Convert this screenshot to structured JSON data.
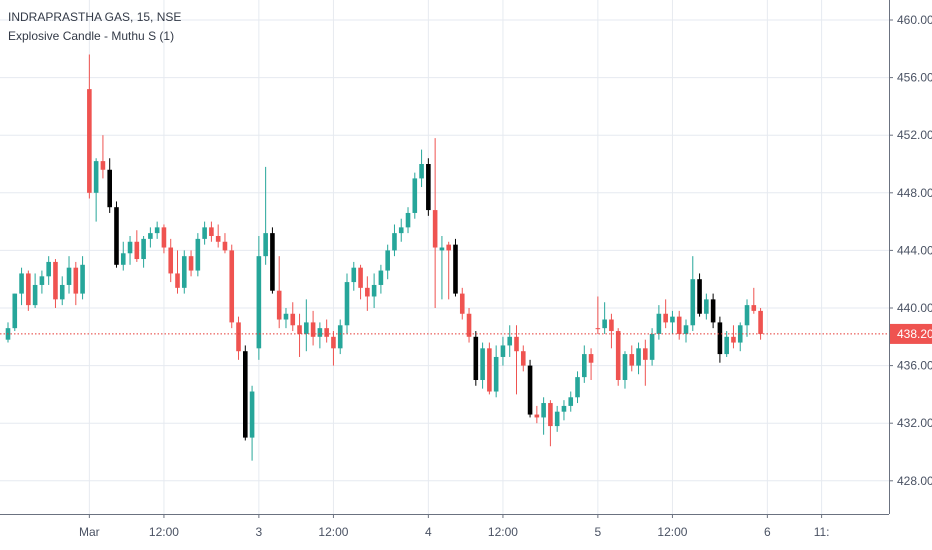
{
  "legend": {
    "symbol_line": "INDRAPRASTHA GAS, 15, NSE",
    "indicator_line": "Explosive Candle - Muthu S (1)"
  },
  "colors": {
    "up": "#26a69a",
    "down": "#ef5350",
    "explosive_down": "#000000",
    "grid": "#e6eaf0",
    "axis_text": "#4a5263",
    "price_line": "#e53935",
    "last_price_bg": "#ef5350"
  },
  "chart_data": {
    "type": "candlestick",
    "title": "INDRAPRASTHA GAS, 15, NSE",
    "indicator": "Explosive Candle - Muthu S (1)",
    "y_ticks": [
      460.0,
      456.0,
      452.0,
      448.0,
      444.0,
      440.0,
      436.0,
      432.0,
      428.0
    ],
    "y_tick_labels": [
      "460.00",
      "456.00",
      "452.00",
      "448.00",
      "444.00",
      "440.00",
      "436.00",
      "432.00",
      "428.00"
    ],
    "ylim": [
      426.0,
      462.0
    ],
    "x_labels": [
      {
        "label": "Mar",
        "bar": 12
      },
      {
        "label": "12:00",
        "bar": 23
      },
      {
        "label": "3",
        "bar": 37
      },
      {
        "label": "12:00",
        "bar": 48
      },
      {
        "label": "4",
        "bar": 62
      },
      {
        "label": "12:00",
        "bar": 73
      },
      {
        "label": "5",
        "bar": 87
      },
      {
        "label": "12:00",
        "bar": 98
      },
      {
        "label": "6",
        "bar": 112
      },
      {
        "label": "11:",
        "bar": 120
      }
    ],
    "last_price": 438.2,
    "last_price_label": "438.20",
    "candles": [
      {
        "o": 437.8,
        "h": 439.0,
        "l": 437.6,
        "c": 438.6,
        "k": "u"
      },
      {
        "o": 438.6,
        "h": 441.0,
        "l": 438.4,
        "c": 441.0,
        "k": "u"
      },
      {
        "o": 441.0,
        "h": 442.8,
        "l": 440.2,
        "c": 442.4,
        "k": "u"
      },
      {
        "o": 442.4,
        "h": 442.6,
        "l": 439.8,
        "c": 440.2,
        "k": "d"
      },
      {
        "o": 440.2,
        "h": 442.4,
        "l": 440.0,
        "c": 441.6,
        "k": "u"
      },
      {
        "o": 441.6,
        "h": 442.6,
        "l": 441.0,
        "c": 442.2,
        "k": "u"
      },
      {
        "o": 442.2,
        "h": 443.6,
        "l": 441.6,
        "c": 443.2,
        "k": "u"
      },
      {
        "o": 443.2,
        "h": 443.4,
        "l": 440.0,
        "c": 440.6,
        "k": "d"
      },
      {
        "o": 440.6,
        "h": 442.2,
        "l": 440.2,
        "c": 441.6,
        "k": "u"
      },
      {
        "o": 441.6,
        "h": 443.6,
        "l": 441.0,
        "c": 442.8,
        "k": "u"
      },
      {
        "o": 442.8,
        "h": 443.2,
        "l": 440.2,
        "c": 441.0,
        "k": "d"
      },
      {
        "o": 441.0,
        "h": 443.6,
        "l": 440.6,
        "c": 443.0,
        "k": "u"
      },
      {
        "o": 448.0,
        "h": 457.6,
        "l": 447.6,
        "c": 455.2,
        "k": "d"
      },
      {
        "o": 448.0,
        "h": 450.4,
        "l": 446.0,
        "c": 450.2,
        "k": "u"
      },
      {
        "o": 450.2,
        "h": 452.0,
        "l": 449.0,
        "c": 449.6,
        "k": "d"
      },
      {
        "o": 449.6,
        "h": 450.4,
        "l": 446.6,
        "c": 447.0,
        "k": "x"
      },
      {
        "o": 447.0,
        "h": 447.4,
        "l": 442.8,
        "c": 443.0,
        "k": "x"
      },
      {
        "o": 443.0,
        "h": 444.6,
        "l": 442.6,
        "c": 443.8,
        "k": "u"
      },
      {
        "o": 443.8,
        "h": 445.0,
        "l": 443.0,
        "c": 444.6,
        "k": "u"
      },
      {
        "o": 444.6,
        "h": 445.4,
        "l": 443.2,
        "c": 443.4,
        "k": "d"
      },
      {
        "o": 443.4,
        "h": 445.0,
        "l": 442.8,
        "c": 444.8,
        "k": "u"
      },
      {
        "o": 444.8,
        "h": 445.6,
        "l": 444.2,
        "c": 445.2,
        "k": "u"
      },
      {
        "o": 445.2,
        "h": 446.0,
        "l": 444.8,
        "c": 445.6,
        "k": "u"
      },
      {
        "o": 445.6,
        "h": 445.8,
        "l": 443.8,
        "c": 444.2,
        "k": "d"
      },
      {
        "o": 444.2,
        "h": 444.8,
        "l": 441.8,
        "c": 442.4,
        "k": "d"
      },
      {
        "o": 442.4,
        "h": 444.0,
        "l": 441.0,
        "c": 441.4,
        "k": "d"
      },
      {
        "o": 441.4,
        "h": 444.0,
        "l": 441.0,
        "c": 443.6,
        "k": "u"
      },
      {
        "o": 443.6,
        "h": 444.0,
        "l": 442.2,
        "c": 442.6,
        "k": "d"
      },
      {
        "o": 442.6,
        "h": 445.2,
        "l": 442.2,
        "c": 444.8,
        "k": "u"
      },
      {
        "o": 444.8,
        "h": 446.0,
        "l": 444.4,
        "c": 445.6,
        "k": "u"
      },
      {
        "o": 445.6,
        "h": 446.0,
        "l": 444.6,
        "c": 445.0,
        "k": "d"
      },
      {
        "o": 445.0,
        "h": 445.8,
        "l": 444.2,
        "c": 444.6,
        "k": "d"
      },
      {
        "o": 444.6,
        "h": 445.2,
        "l": 443.8,
        "c": 444.0,
        "k": "d"
      },
      {
        "o": 444.0,
        "h": 444.4,
        "l": 438.6,
        "c": 439.0,
        "k": "d"
      },
      {
        "o": 439.0,
        "h": 439.4,
        "l": 436.4,
        "c": 437.0,
        "k": "d"
      },
      {
        "o": 437.0,
        "h": 437.4,
        "l": 430.8,
        "c": 431.0,
        "k": "x"
      },
      {
        "o": 431.0,
        "h": 434.6,
        "l": 429.4,
        "c": 434.2,
        "k": "u"
      },
      {
        "o": 437.2,
        "h": 445.0,
        "l": 436.4,
        "c": 443.6,
        "k": "u"
      },
      {
        "o": 443.6,
        "h": 449.8,
        "l": 443.0,
        "c": 445.2,
        "k": "u"
      },
      {
        "o": 445.2,
        "h": 445.6,
        "l": 441.0,
        "c": 441.2,
        "k": "x"
      },
      {
        "o": 441.2,
        "h": 443.6,
        "l": 438.6,
        "c": 439.2,
        "k": "d"
      },
      {
        "o": 439.2,
        "h": 440.0,
        "l": 438.6,
        "c": 439.6,
        "k": "u"
      },
      {
        "o": 439.6,
        "h": 440.4,
        "l": 438.4,
        "c": 438.8,
        "k": "d"
      },
      {
        "o": 438.8,
        "h": 439.6,
        "l": 436.6,
        "c": 438.2,
        "k": "d"
      },
      {
        "o": 438.2,
        "h": 440.6,
        "l": 437.0,
        "c": 439.0,
        "k": "u"
      },
      {
        "o": 439.0,
        "h": 439.8,
        "l": 437.4,
        "c": 438.0,
        "k": "d"
      },
      {
        "o": 438.0,
        "h": 439.0,
        "l": 437.2,
        "c": 438.6,
        "k": "u"
      },
      {
        "o": 438.6,
        "h": 439.2,
        "l": 437.6,
        "c": 438.0,
        "k": "d"
      },
      {
        "o": 438.0,
        "h": 438.4,
        "l": 436.0,
        "c": 437.2,
        "k": "d"
      },
      {
        "o": 437.2,
        "h": 439.2,
        "l": 436.8,
        "c": 438.8,
        "k": "u"
      },
      {
        "o": 438.8,
        "h": 442.4,
        "l": 438.2,
        "c": 441.8,
        "k": "u"
      },
      {
        "o": 441.8,
        "h": 443.2,
        "l": 441.2,
        "c": 442.8,
        "k": "u"
      },
      {
        "o": 442.8,
        "h": 443.0,
        "l": 440.6,
        "c": 441.4,
        "k": "d"
      },
      {
        "o": 441.4,
        "h": 442.2,
        "l": 439.8,
        "c": 440.8,
        "k": "d"
      },
      {
        "o": 440.8,
        "h": 442.4,
        "l": 440.0,
        "c": 441.6,
        "k": "u"
      },
      {
        "o": 441.6,
        "h": 443.0,
        "l": 441.0,
        "c": 442.6,
        "k": "u"
      },
      {
        "o": 442.6,
        "h": 444.4,
        "l": 442.0,
        "c": 444.0,
        "k": "u"
      },
      {
        "o": 444.0,
        "h": 445.8,
        "l": 443.6,
        "c": 445.2,
        "k": "u"
      },
      {
        "o": 445.2,
        "h": 446.2,
        "l": 444.6,
        "c": 445.6,
        "k": "u"
      },
      {
        "o": 445.6,
        "h": 447.0,
        "l": 445.2,
        "c": 446.6,
        "k": "u"
      },
      {
        "o": 446.6,
        "h": 449.4,
        "l": 446.2,
        "c": 449.0,
        "k": "u"
      },
      {
        "o": 449.0,
        "h": 451.0,
        "l": 448.4,
        "c": 450.0,
        "k": "u"
      },
      {
        "o": 450.0,
        "h": 450.4,
        "l": 446.4,
        "c": 446.8,
        "k": "x"
      },
      {
        "o": 446.8,
        "h": 451.8,
        "l": 440.0,
        "c": 444.2,
        "k": "d"
      },
      {
        "o": 444.2,
        "h": 445.0,
        "l": 440.6,
        "c": 444.0,
        "k": "u"
      },
      {
        "o": 444.0,
        "h": 444.6,
        "l": 440.6,
        "c": 444.4,
        "k": "d"
      },
      {
        "o": 444.4,
        "h": 444.8,
        "l": 440.8,
        "c": 441.0,
        "k": "x"
      },
      {
        "o": 441.0,
        "h": 441.4,
        "l": 439.2,
        "c": 439.6,
        "k": "d"
      },
      {
        "o": 439.6,
        "h": 440.0,
        "l": 437.6,
        "c": 438.0,
        "k": "d"
      },
      {
        "o": 438.0,
        "h": 438.4,
        "l": 434.6,
        "c": 435.0,
        "k": "x"
      },
      {
        "o": 435.0,
        "h": 437.6,
        "l": 434.4,
        "c": 437.2,
        "k": "u"
      },
      {
        "o": 437.2,
        "h": 437.6,
        "l": 434.0,
        "c": 434.2,
        "k": "d"
      },
      {
        "o": 434.2,
        "h": 437.4,
        "l": 433.8,
        "c": 436.6,
        "k": "u"
      },
      {
        "o": 436.6,
        "h": 438.0,
        "l": 436.0,
        "c": 437.4,
        "k": "u"
      },
      {
        "o": 437.4,
        "h": 438.8,
        "l": 436.6,
        "c": 438.0,
        "k": "u"
      },
      {
        "o": 438.0,
        "h": 438.8,
        "l": 434.0,
        "c": 437.0,
        "k": "d"
      },
      {
        "o": 437.0,
        "h": 437.4,
        "l": 435.6,
        "c": 436.0,
        "k": "d"
      },
      {
        "o": 436.0,
        "h": 436.4,
        "l": 432.4,
        "c": 432.6,
        "k": "x"
      },
      {
        "o": 432.6,
        "h": 433.2,
        "l": 432.0,
        "c": 432.4,
        "k": "d"
      },
      {
        "o": 432.4,
        "h": 433.8,
        "l": 431.2,
        "c": 433.4,
        "k": "u"
      },
      {
        "o": 433.4,
        "h": 433.6,
        "l": 430.4,
        "c": 431.8,
        "k": "d"
      },
      {
        "o": 431.8,
        "h": 433.2,
        "l": 431.4,
        "c": 432.8,
        "k": "u"
      },
      {
        "o": 432.8,
        "h": 433.6,
        "l": 432.2,
        "c": 433.2,
        "k": "u"
      },
      {
        "o": 433.2,
        "h": 434.2,
        "l": 432.8,
        "c": 433.8,
        "k": "u"
      },
      {
        "o": 433.8,
        "h": 435.6,
        "l": 433.4,
        "c": 435.2,
        "k": "u"
      },
      {
        "o": 435.2,
        "h": 437.4,
        "l": 434.8,
        "c": 436.8,
        "k": "u"
      },
      {
        "o": 436.8,
        "h": 437.2,
        "l": 435.0,
        "c": 436.2,
        "k": "d"
      },
      {
        "o": 438.6,
        "h": 440.8,
        "l": 438.2,
        "c": 438.6,
        "k": "d"
      },
      {
        "o": 438.6,
        "h": 440.4,
        "l": 438.2,
        "c": 439.2,
        "k": "u"
      },
      {
        "o": 439.2,
        "h": 439.6,
        "l": 437.2,
        "c": 438.4,
        "k": "d"
      },
      {
        "o": 438.4,
        "h": 438.6,
        "l": 434.6,
        "c": 435.0,
        "k": "d"
      },
      {
        "o": 435.0,
        "h": 437.0,
        "l": 434.4,
        "c": 436.8,
        "k": "u"
      },
      {
        "o": 436.8,
        "h": 437.4,
        "l": 435.6,
        "c": 436.0,
        "k": "d"
      },
      {
        "o": 436.0,
        "h": 437.6,
        "l": 435.4,
        "c": 437.2,
        "k": "u"
      },
      {
        "o": 437.2,
        "h": 437.8,
        "l": 434.6,
        "c": 436.4,
        "k": "d"
      },
      {
        "o": 436.4,
        "h": 438.6,
        "l": 436.0,
        "c": 438.2,
        "k": "u"
      },
      {
        "o": 438.2,
        "h": 440.2,
        "l": 437.8,
        "c": 439.6,
        "k": "u"
      },
      {
        "o": 439.6,
        "h": 440.6,
        "l": 438.6,
        "c": 439.0,
        "k": "d"
      },
      {
        "o": 439.0,
        "h": 439.8,
        "l": 438.2,
        "c": 439.4,
        "k": "u"
      },
      {
        "o": 439.4,
        "h": 439.8,
        "l": 437.8,
        "c": 438.2,
        "k": "d"
      },
      {
        "o": 438.2,
        "h": 439.2,
        "l": 437.6,
        "c": 438.8,
        "k": "u"
      },
      {
        "o": 438.8,
        "h": 443.6,
        "l": 438.4,
        "c": 442.0,
        "k": "u"
      },
      {
        "o": 442.0,
        "h": 442.4,
        "l": 439.4,
        "c": 439.6,
        "k": "x"
      },
      {
        "o": 439.6,
        "h": 441.0,
        "l": 439.2,
        "c": 440.6,
        "k": "u"
      },
      {
        "o": 440.6,
        "h": 441.0,
        "l": 438.6,
        "c": 439.0,
        "k": "x"
      },
      {
        "o": 439.0,
        "h": 439.4,
        "l": 436.2,
        "c": 436.8,
        "k": "x"
      },
      {
        "o": 436.8,
        "h": 438.4,
        "l": 436.6,
        "c": 438.0,
        "k": "u"
      },
      {
        "o": 438.0,
        "h": 438.8,
        "l": 437.2,
        "c": 437.6,
        "k": "d"
      },
      {
        "o": 437.6,
        "h": 439.0,
        "l": 437.0,
        "c": 438.8,
        "k": "u"
      },
      {
        "o": 438.8,
        "h": 440.6,
        "l": 438.0,
        "c": 440.2,
        "k": "u"
      },
      {
        "o": 440.2,
        "h": 441.4,
        "l": 439.6,
        "c": 439.8,
        "k": "d"
      },
      {
        "o": 439.8,
        "h": 440.0,
        "l": 437.8,
        "c": 438.2,
        "k": "d"
      }
    ]
  }
}
